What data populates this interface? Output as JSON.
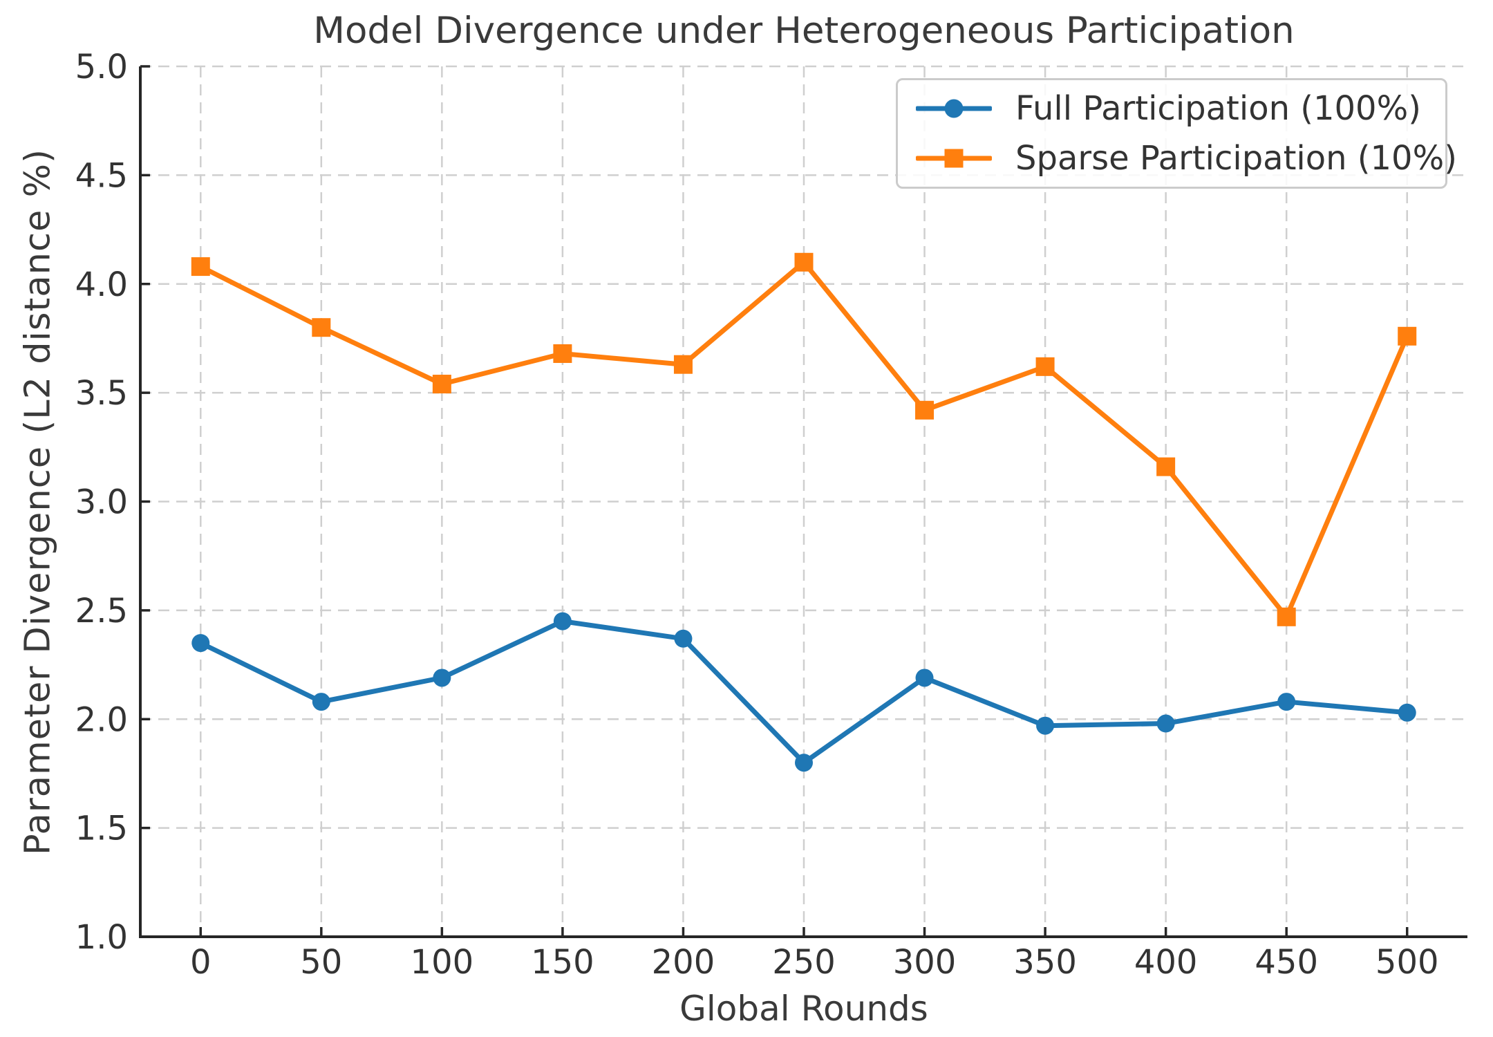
{
  "chart_data": {
    "type": "line",
    "title": "Model Divergence under Heterogeneous Participation",
    "xlabel": "Global Rounds",
    "ylabel": "Parameter Divergence (L2 distance %)",
    "x": [
      0,
      50,
      100,
      150,
      200,
      250,
      300,
      350,
      400,
      450,
      500
    ],
    "series": [
      {
        "name": "Full Participation (100%)",
        "color": "#1f77b4",
        "marker": "circle",
        "values": [
          2.35,
          2.08,
          2.19,
          2.45,
          2.37,
          1.8,
          2.19,
          1.97,
          1.98,
          2.08,
          2.03
        ]
      },
      {
        "name": "Sparse Participation (10%)",
        "color": "#ff7f0e",
        "marker": "square",
        "values": [
          4.08,
          3.8,
          3.54,
          3.68,
          3.63,
          4.1,
          3.42,
          3.62,
          3.16,
          2.47,
          3.76
        ]
      }
    ],
    "ylim": [
      1.0,
      5.0
    ],
    "yticks": [
      1.0,
      1.5,
      2.0,
      2.5,
      3.0,
      3.5,
      4.0,
      4.5,
      5.0
    ],
    "ytick_labels": [
      "1.0",
      "1.5",
      "2.0",
      "2.5",
      "3.0",
      "3.5",
      "4.0",
      "4.5",
      "5.0"
    ],
    "xticks": [
      0,
      50,
      100,
      150,
      200,
      250,
      300,
      350,
      400,
      450,
      500
    ],
    "xtick_labels": [
      "0",
      "50",
      "100",
      "150",
      "200",
      "250",
      "300",
      "350",
      "400",
      "450",
      "500"
    ],
    "grid": true,
    "grid_style": "dashed",
    "grid_color": "#cfcfcf",
    "legend_position": "upper right",
    "text_color": "#3a3a3a",
    "spine_color": "#262626"
  }
}
